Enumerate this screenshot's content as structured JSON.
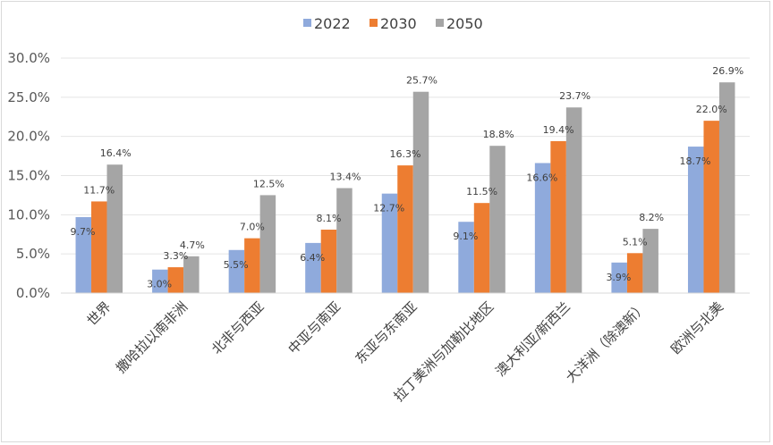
{
  "chart_data": {
    "type": "bar",
    "title": "",
    "xlabel": "",
    "ylabel": "",
    "ylim": [
      0,
      30
    ],
    "yticks": [
      "0.0%",
      "5.0%",
      "10.0%",
      "15.0%",
      "20.0%",
      "25.0%",
      "30.0%"
    ],
    "grid": true,
    "legend_position": "top-center",
    "categories": [
      "世界",
      "撒哈拉以南非洲",
      "北非与西亚",
      "中亚与南亚",
      "东亚与东南亚",
      "拉丁美洲与加勒比地区",
      "澳大利亚/新西兰",
      "大洋洲（除澳新）",
      "欧洲与北美"
    ],
    "series": [
      {
        "name": "2022",
        "color": "#8faadc",
        "values": [
          9.7,
          3.0,
          5.5,
          6.4,
          12.7,
          9.1,
          16.6,
          3.9,
          18.7
        ],
        "labels": [
          "9.7%",
          "3.0%",
          "5.5%",
          "6.4%",
          "12.7%",
          "9.1%",
          "16.6%",
          "3.9%",
          "18.7%"
        ]
      },
      {
        "name": "2030",
        "color": "#ed7d31",
        "values": [
          11.7,
          3.3,
          7.0,
          8.1,
          16.3,
          11.5,
          19.4,
          5.1,
          22.0
        ],
        "labels": [
          "11.7%",
          "3.3%",
          "7.0%",
          "8.1%",
          "16.3%",
          "11.5%",
          "19.4%",
          "5.1%",
          "22.0%"
        ]
      },
      {
        "name": "2050",
        "color": "#a5a5a5",
        "values": [
          16.4,
          4.7,
          12.5,
          13.4,
          25.7,
          18.8,
          23.7,
          8.2,
          26.9
        ],
        "labels": [
          "16.4%",
          "4.7%",
          "12.5%",
          "13.4%",
          "25.7%",
          "18.8%",
          "23.7%",
          "8.2%",
          "26.9%"
        ]
      }
    ]
  }
}
